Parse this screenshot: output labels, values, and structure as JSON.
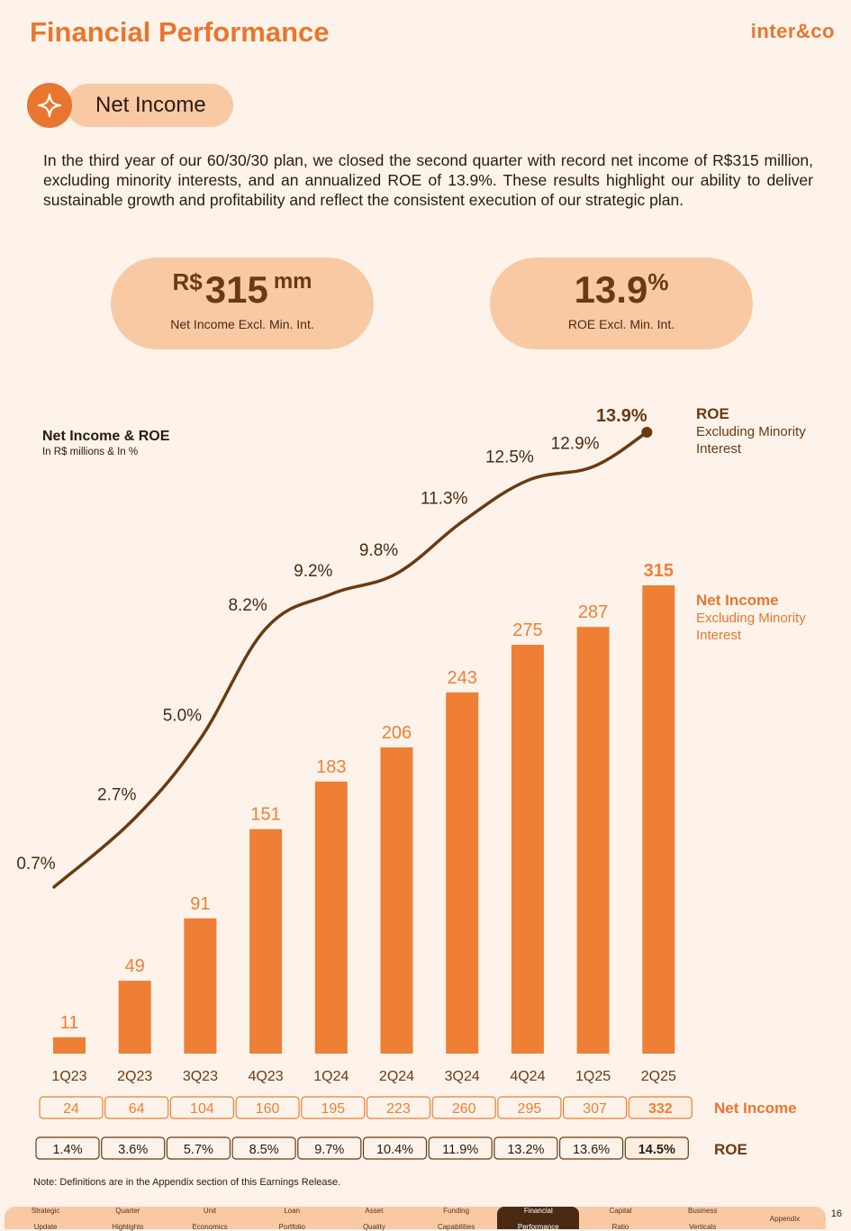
{
  "header": {
    "title": "Financial Performance",
    "logo": "inter&co"
  },
  "section": {
    "icon": "sparkle-icon",
    "label": "Net Income"
  },
  "intro": "In the third year of our 60/30/30 plan, we closed the second quarter with record net income of R$315 million, excluding minority interests, and an annualized ROE of 13.9%. These results highlight our ability to deliver sustainable growth and profitability and reflect the consistent execution of our strategic plan.",
  "kpis": {
    "net_income": {
      "currency": "R$",
      "value": "315",
      "unit": "mm",
      "label": "Net Income Excl. Min. Int."
    },
    "roe": {
      "value": "13.9",
      "unit": "%",
      "label": "ROE Excl. Min. Int."
    }
  },
  "chart_title": {
    "title": "Net Income & ROE",
    "subtitle": "In R$ millions & In %"
  },
  "legend": {
    "roe_title": "ROE",
    "roe_sub": "Excluding Minority Interest",
    "ni_title": "Net Income",
    "ni_sub": "Excluding Minority Interest"
  },
  "chart_data": {
    "type": "bar",
    "title": "Net Income & ROE",
    "subtitle": "In R$ millions & In %",
    "categories": [
      "1Q23",
      "2Q23",
      "3Q23",
      "4Q23",
      "1Q24",
      "2Q24",
      "3Q24",
      "4Q24",
      "1Q25",
      "2Q25"
    ],
    "series": [
      {
        "name": "Net Income Excluding Minority Interest",
        "type": "bar",
        "values": [
          11,
          49,
          91,
          151,
          183,
          206,
          243,
          275,
          287,
          315
        ],
        "color": "#ee7f35"
      },
      {
        "name": "ROE Excluding Minority Interest",
        "type": "line",
        "unit": "%",
        "values": [
          0.7,
          2.7,
          5.0,
          8.2,
          9.2,
          9.8,
          11.3,
          12.5,
          12.9,
          13.9
        ],
        "color": "#6a3a12"
      }
    ],
    "ylim": [
      0,
      315
    ],
    "grid": false,
    "legend_position": "right"
  },
  "table": {
    "net_income_label": "Net Income",
    "roe_label": "ROE",
    "net_income": [
      "24",
      "64",
      "104",
      "160",
      "195",
      "223",
      "260",
      "295",
      "307",
      "332"
    ],
    "roe": [
      "1.4%",
      "3.6%",
      "5.7%",
      "8.5%",
      "9.7%",
      "10.4%",
      "11.9%",
      "13.2%",
      "13.6%",
      "14.5%"
    ]
  },
  "note": "Note: Definitions are in the Appendix section of this Earnings Release.",
  "nav": {
    "items": [
      [
        "Strategic",
        "Update"
      ],
      [
        "Quarter",
        "Highlights"
      ],
      [
        "Unit",
        "Economics"
      ],
      [
        "Loan",
        "Portfolio"
      ],
      [
        "Asset",
        "Quality"
      ],
      [
        "Funding",
        "Capabilities"
      ],
      [
        "Financial",
        "Performance"
      ],
      [
        "Capital",
        "Ratio"
      ],
      [
        "Business",
        "Verticals"
      ],
      [
        "Appendix",
        ""
      ]
    ],
    "active_index": 6
  },
  "page_number": "16",
  "colors": {
    "accent": "#e8762f",
    "bar": "#ee7f35",
    "dark": "#6a3a12",
    "pill": "#f9c9a4",
    "background": "#fdf3ea"
  }
}
